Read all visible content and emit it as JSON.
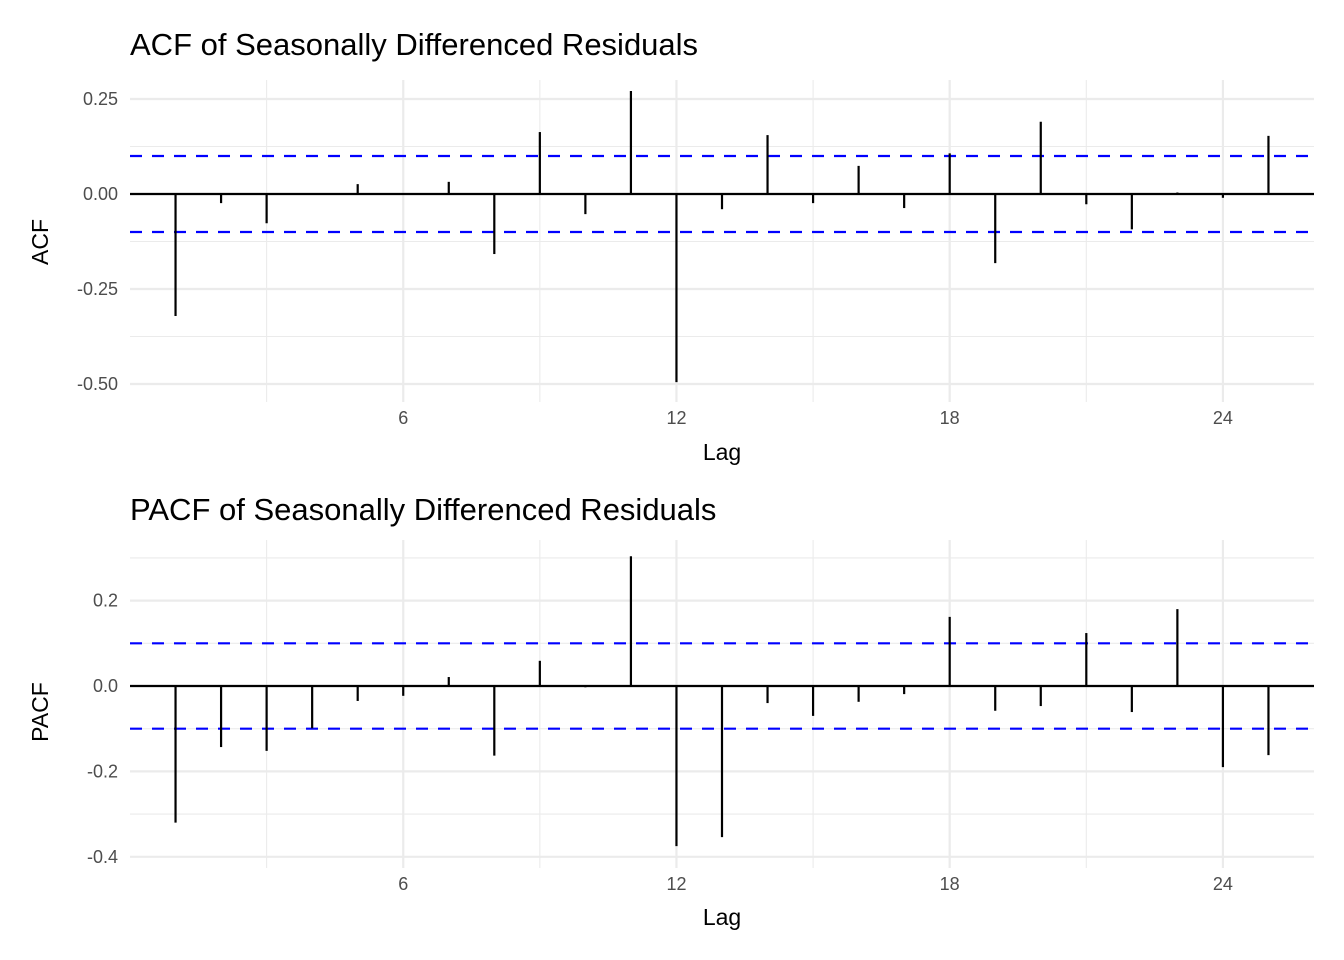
{
  "chart_data": [
    {
      "type": "bar",
      "subtype": "acf-stem",
      "title": "ACF of Seasonally Differenced Residuals",
      "xlabel": "Lag",
      "ylabel": "ACF",
      "xlim": [
        0,
        26
      ],
      "ylim": [
        -0.52,
        0.3
      ],
      "xticks": [
        6,
        12,
        18,
        24
      ],
      "xtick_labels": [
        "6",
        "12",
        "18",
        "24"
      ],
      "yticks": [
        -0.5,
        -0.25,
        0,
        0.25
      ],
      "ytick_labels": [
        "-0.50",
        "-0.25",
        "0.00",
        "0.25"
      ],
      "confidence_bound": 0.1,
      "grid": true,
      "lags": [
        1,
        2,
        3,
        4,
        5,
        6,
        7,
        8,
        9,
        10,
        11,
        12,
        13,
        14,
        15,
        16,
        17,
        18,
        19,
        20,
        21,
        22,
        23,
        24,
        25
      ],
      "values": [
        -0.321,
        -0.024,
        -0.077,
        0.0,
        0.026,
        0.0,
        0.032,
        -0.158,
        0.163,
        -0.053,
        0.271,
        -0.495,
        -0.04,
        0.155,
        -0.024,
        0.074,
        -0.037,
        0.107,
        -0.182,
        0.19,
        -0.027,
        -0.093,
        0.004,
        -0.01,
        0.153
      ]
    },
    {
      "type": "bar",
      "subtype": "pacf-stem",
      "title": "PACF of Seasonally Differenced Residuals",
      "xlabel": "Lag",
      "ylabel": "PACF",
      "xlim": [
        0,
        26
      ],
      "ylim": [
        -0.4,
        0.31
      ],
      "xticks": [
        6,
        12,
        18,
        24
      ],
      "xtick_labels": [
        "6",
        "12",
        "18",
        "24"
      ],
      "yticks": [
        -0.4,
        -0.2,
        0,
        0.2
      ],
      "ytick_labels": [
        "-0.4",
        "-0.2",
        "0.0",
        "0.2"
      ],
      "confidence_bound": 0.1,
      "grid": true,
      "lags": [
        1,
        2,
        3,
        4,
        5,
        6,
        7,
        8,
        9,
        10,
        11,
        12,
        13,
        14,
        15,
        16,
        17,
        18,
        19,
        20,
        21,
        22,
        23,
        24,
        25
      ],
      "values": [
        -0.32,
        -0.143,
        -0.152,
        -0.099,
        -0.035,
        -0.023,
        0.021,
        -0.163,
        0.059,
        -0.003,
        0.304,
        -0.375,
        -0.354,
        -0.04,
        -0.07,
        -0.037,
        -0.019,
        0.162,
        -0.058,
        -0.047,
        0.124,
        -0.061,
        0.18,
        -0.19,
        -0.162
      ]
    }
  ]
}
